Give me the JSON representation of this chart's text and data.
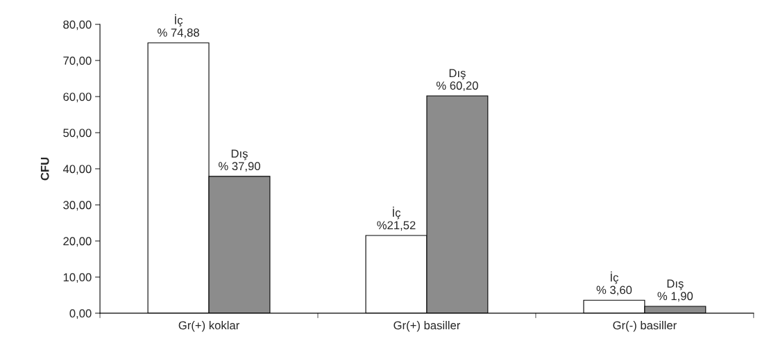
{
  "chart_data": {
    "type": "bar",
    "ylabel": "CFU",
    "categories": [
      "Gr(+) koklar",
      "Gr(+) basiller",
      "Gr(-) basiller"
    ],
    "series": [
      {
        "name": "İç",
        "color": "#ffffff",
        "values": [
          74.88,
          21.52,
          3.6
        ],
        "value_labels": [
          "% 74,88",
          "%21,52",
          "% 3,60"
        ]
      },
      {
        "name": "Dış",
        "color": "#8c8c8c",
        "values": [
          37.9,
          60.2,
          1.9
        ],
        "value_labels": [
          "% 37,90",
          "% 60,20",
          "% 1,90"
        ]
      }
    ],
    "ylim": [
      0,
      80
    ],
    "yticks": [
      {
        "value": 0,
        "label": "0,00"
      },
      {
        "value": 10,
        "label": "10,00"
      },
      {
        "value": 20,
        "label": "20,00"
      },
      {
        "value": 30,
        "label": "30,00"
      },
      {
        "value": 40,
        "label": "40,00"
      },
      {
        "value": 50,
        "label": "50,00"
      },
      {
        "value": 60,
        "label": "60,00"
      },
      {
        "value": 70,
        "label": "70,00"
      },
      {
        "value": 80,
        "label": "80,00"
      }
    ],
    "grid": false,
    "legend": false
  }
}
